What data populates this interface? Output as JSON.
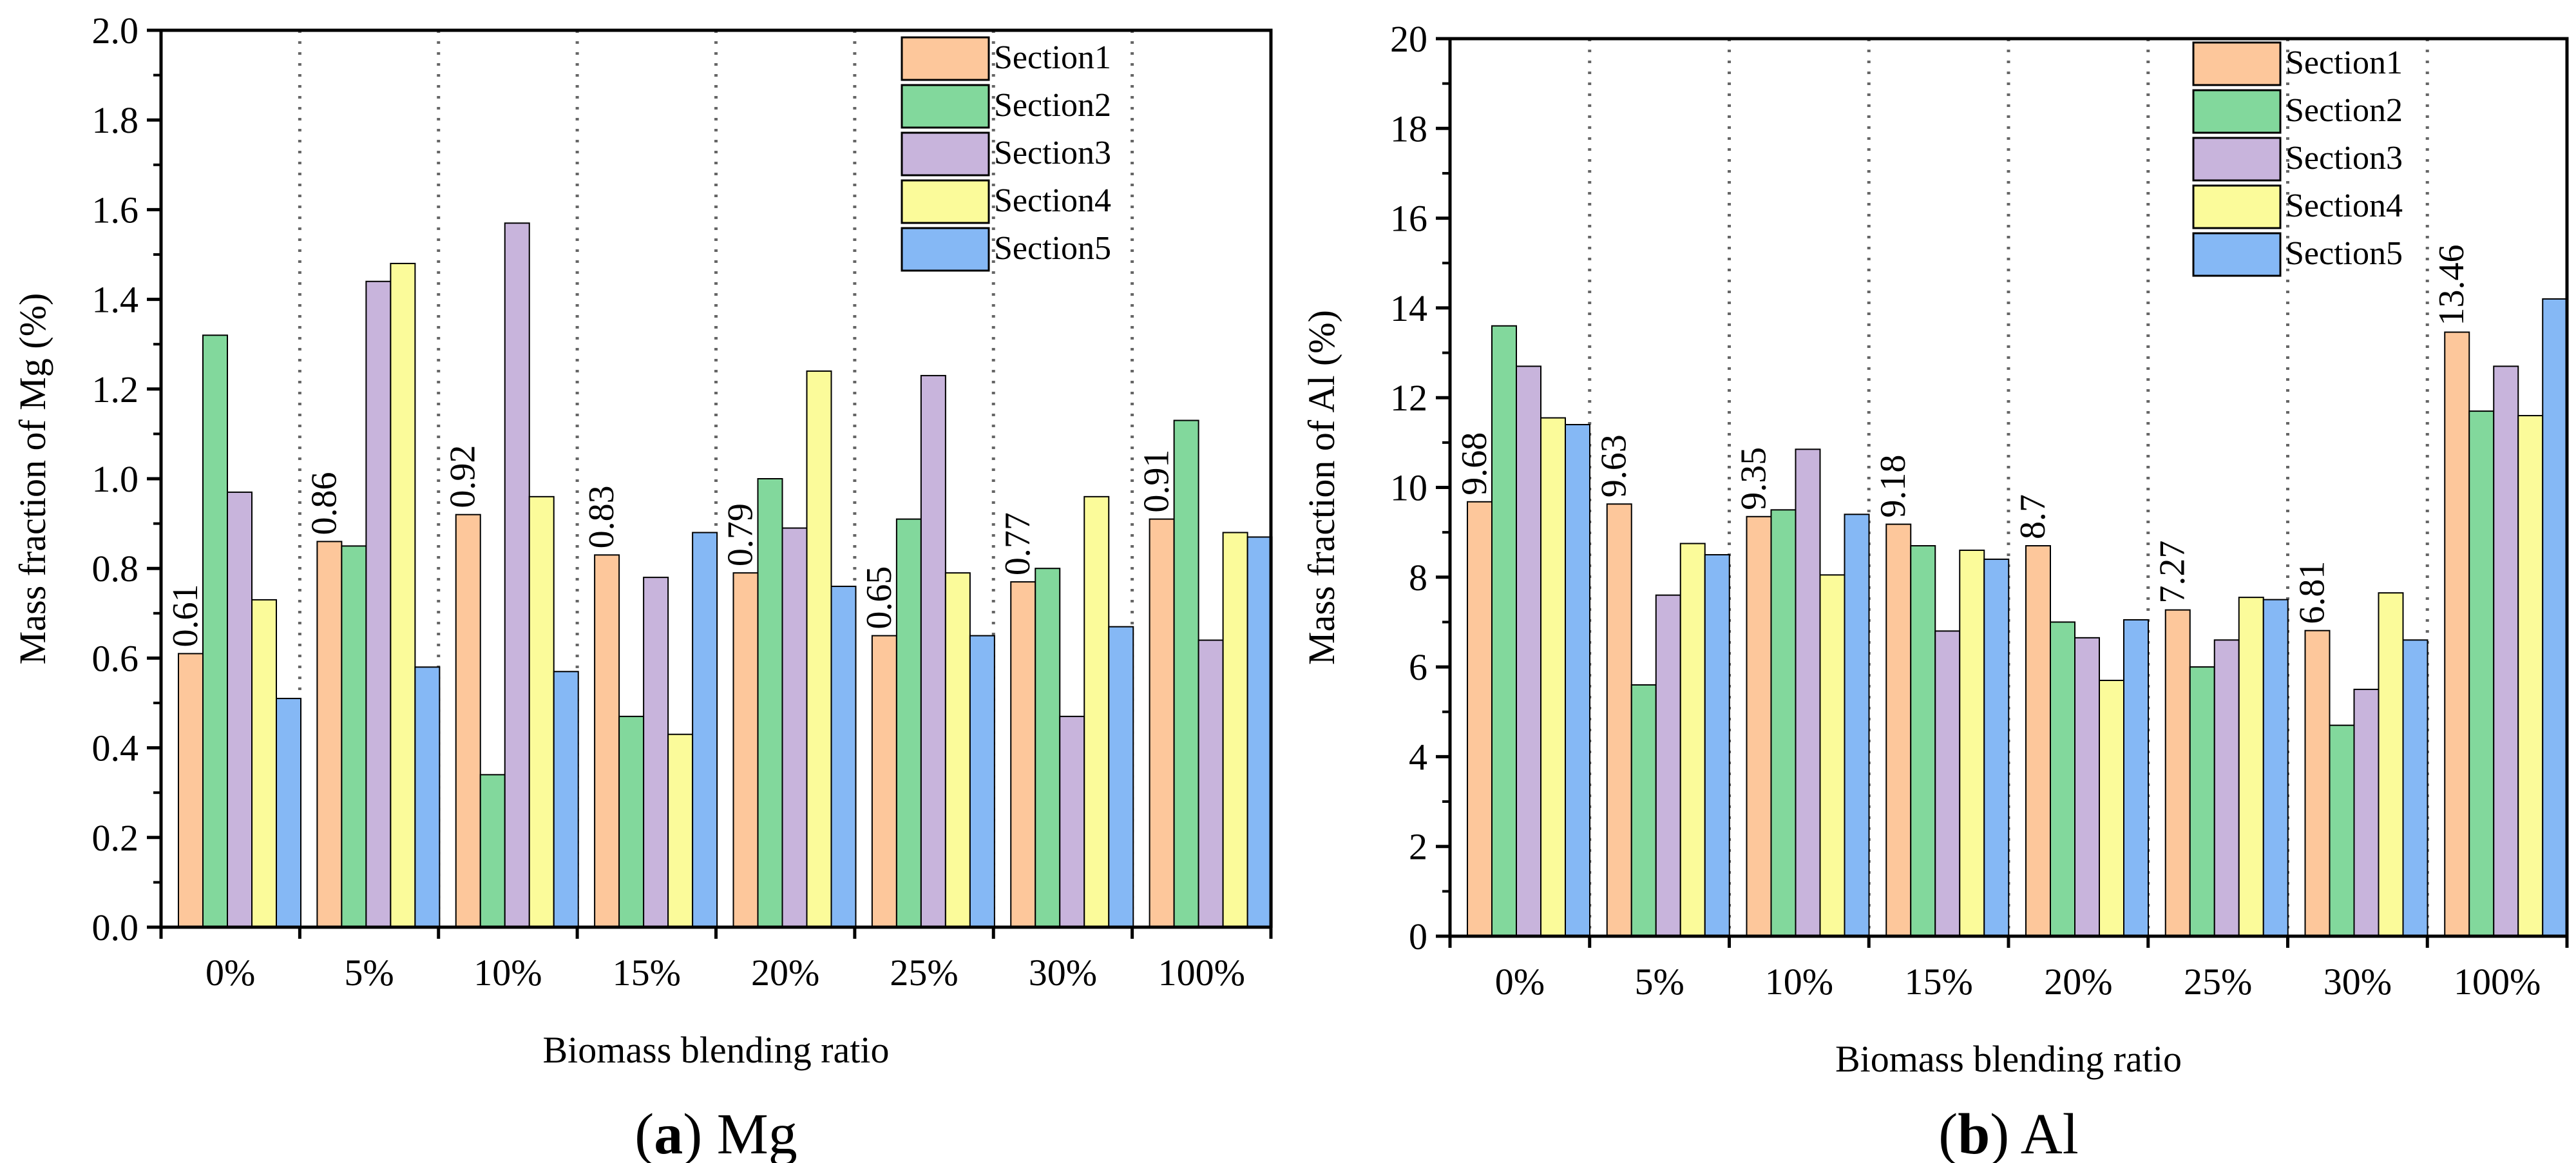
{
  "chart_data": [
    {
      "type": "bar",
      "panel_letter": "a",
      "panel_name": "Mg",
      "xlabel": "Biomass blending ratio",
      "ylabel": "Mass fraction of Mg (%)",
      "ylim": [
        0,
        2.0
      ],
      "yticks": [
        "0.0",
        "0.2",
        "0.4",
        "0.6",
        "0.8",
        "1.0",
        "1.2",
        "1.4",
        "1.6",
        "1.8",
        "2.0"
      ],
      "categories": [
        "0%",
        "5%",
        "10%",
        "15%",
        "20%",
        "25%",
        "30%",
        "100%"
      ],
      "grid": false,
      "group_separators": "dotted",
      "legend_position": "top-right",
      "series": [
        {
          "name": "Section1",
          "color": "#FDC79B",
          "values": [
            0.61,
            0.86,
            0.92,
            0.83,
            0.79,
            0.65,
            0.77,
            0.91
          ]
        },
        {
          "name": "Section2",
          "color": "#82D89C",
          "values": [
            1.32,
            0.85,
            0.34,
            0.47,
            1.0,
            0.91,
            0.8,
            1.13
          ]
        },
        {
          "name": "Section3",
          "color": "#C8B4DC",
          "values": [
            0.97,
            1.44,
            1.57,
            0.78,
            0.89,
            1.23,
            0.47,
            0.64
          ]
        },
        {
          "name": "Section4",
          "color": "#FBFB9A",
          "values": [
            0.73,
            1.48,
            0.96,
            0.43,
            1.24,
            0.79,
            0.96,
            0.88
          ]
        },
        {
          "name": "Section5",
          "color": "#85B8F5",
          "values": [
            0.51,
            0.58,
            0.57,
            0.88,
            0.76,
            0.65,
            0.67,
            0.87
          ]
        }
      ],
      "data_labels": [
        "0.61",
        "0.86",
        "0.92",
        "0.83",
        "0.79",
        "0.65",
        "0.77",
        "0.91"
      ]
    },
    {
      "type": "bar",
      "panel_letter": "b",
      "panel_name": "Al",
      "xlabel": "Biomass blending ratio",
      "ylabel": "Mass fraction of Al (%)",
      "ylim": [
        0,
        20
      ],
      "yticks": [
        "0",
        "2",
        "4",
        "6",
        "8",
        "10",
        "12",
        "14",
        "16",
        "18",
        "20"
      ],
      "categories": [
        "0%",
        "5%",
        "10%",
        "15%",
        "20%",
        "25%",
        "30%",
        "100%"
      ],
      "grid": false,
      "group_separators": "dotted",
      "legend_position": "top-right",
      "series": [
        {
          "name": "Section1",
          "color": "#FDC79B",
          "values": [
            9.68,
            9.63,
            9.35,
            9.18,
            8.7,
            7.27,
            6.81,
            13.46
          ]
        },
        {
          "name": "Section2",
          "color": "#82D89C",
          "values": [
            13.6,
            5.6,
            9.5,
            8.7,
            7.0,
            6.0,
            4.7,
            11.7
          ]
        },
        {
          "name": "Section3",
          "color": "#C8B4DC",
          "values": [
            12.7,
            7.6,
            10.85,
            6.8,
            6.65,
            6.6,
            5.5,
            12.7
          ]
        },
        {
          "name": "Section4",
          "color": "#FBFB9A",
          "values": [
            11.55,
            8.75,
            8.05,
            8.6,
            5.7,
            7.55,
            7.65,
            11.6
          ]
        },
        {
          "name": "Section5",
          "color": "#85B8F5",
          "values": [
            11.4,
            8.5,
            9.4,
            8.4,
            7.05,
            7.5,
            6.6,
            14.2
          ]
        }
      ],
      "data_labels": [
        "9.68",
        "9.63",
        "9.35",
        "9.18",
        "8.7",
        "7.27",
        "6.81",
        "13.46"
      ]
    }
  ]
}
